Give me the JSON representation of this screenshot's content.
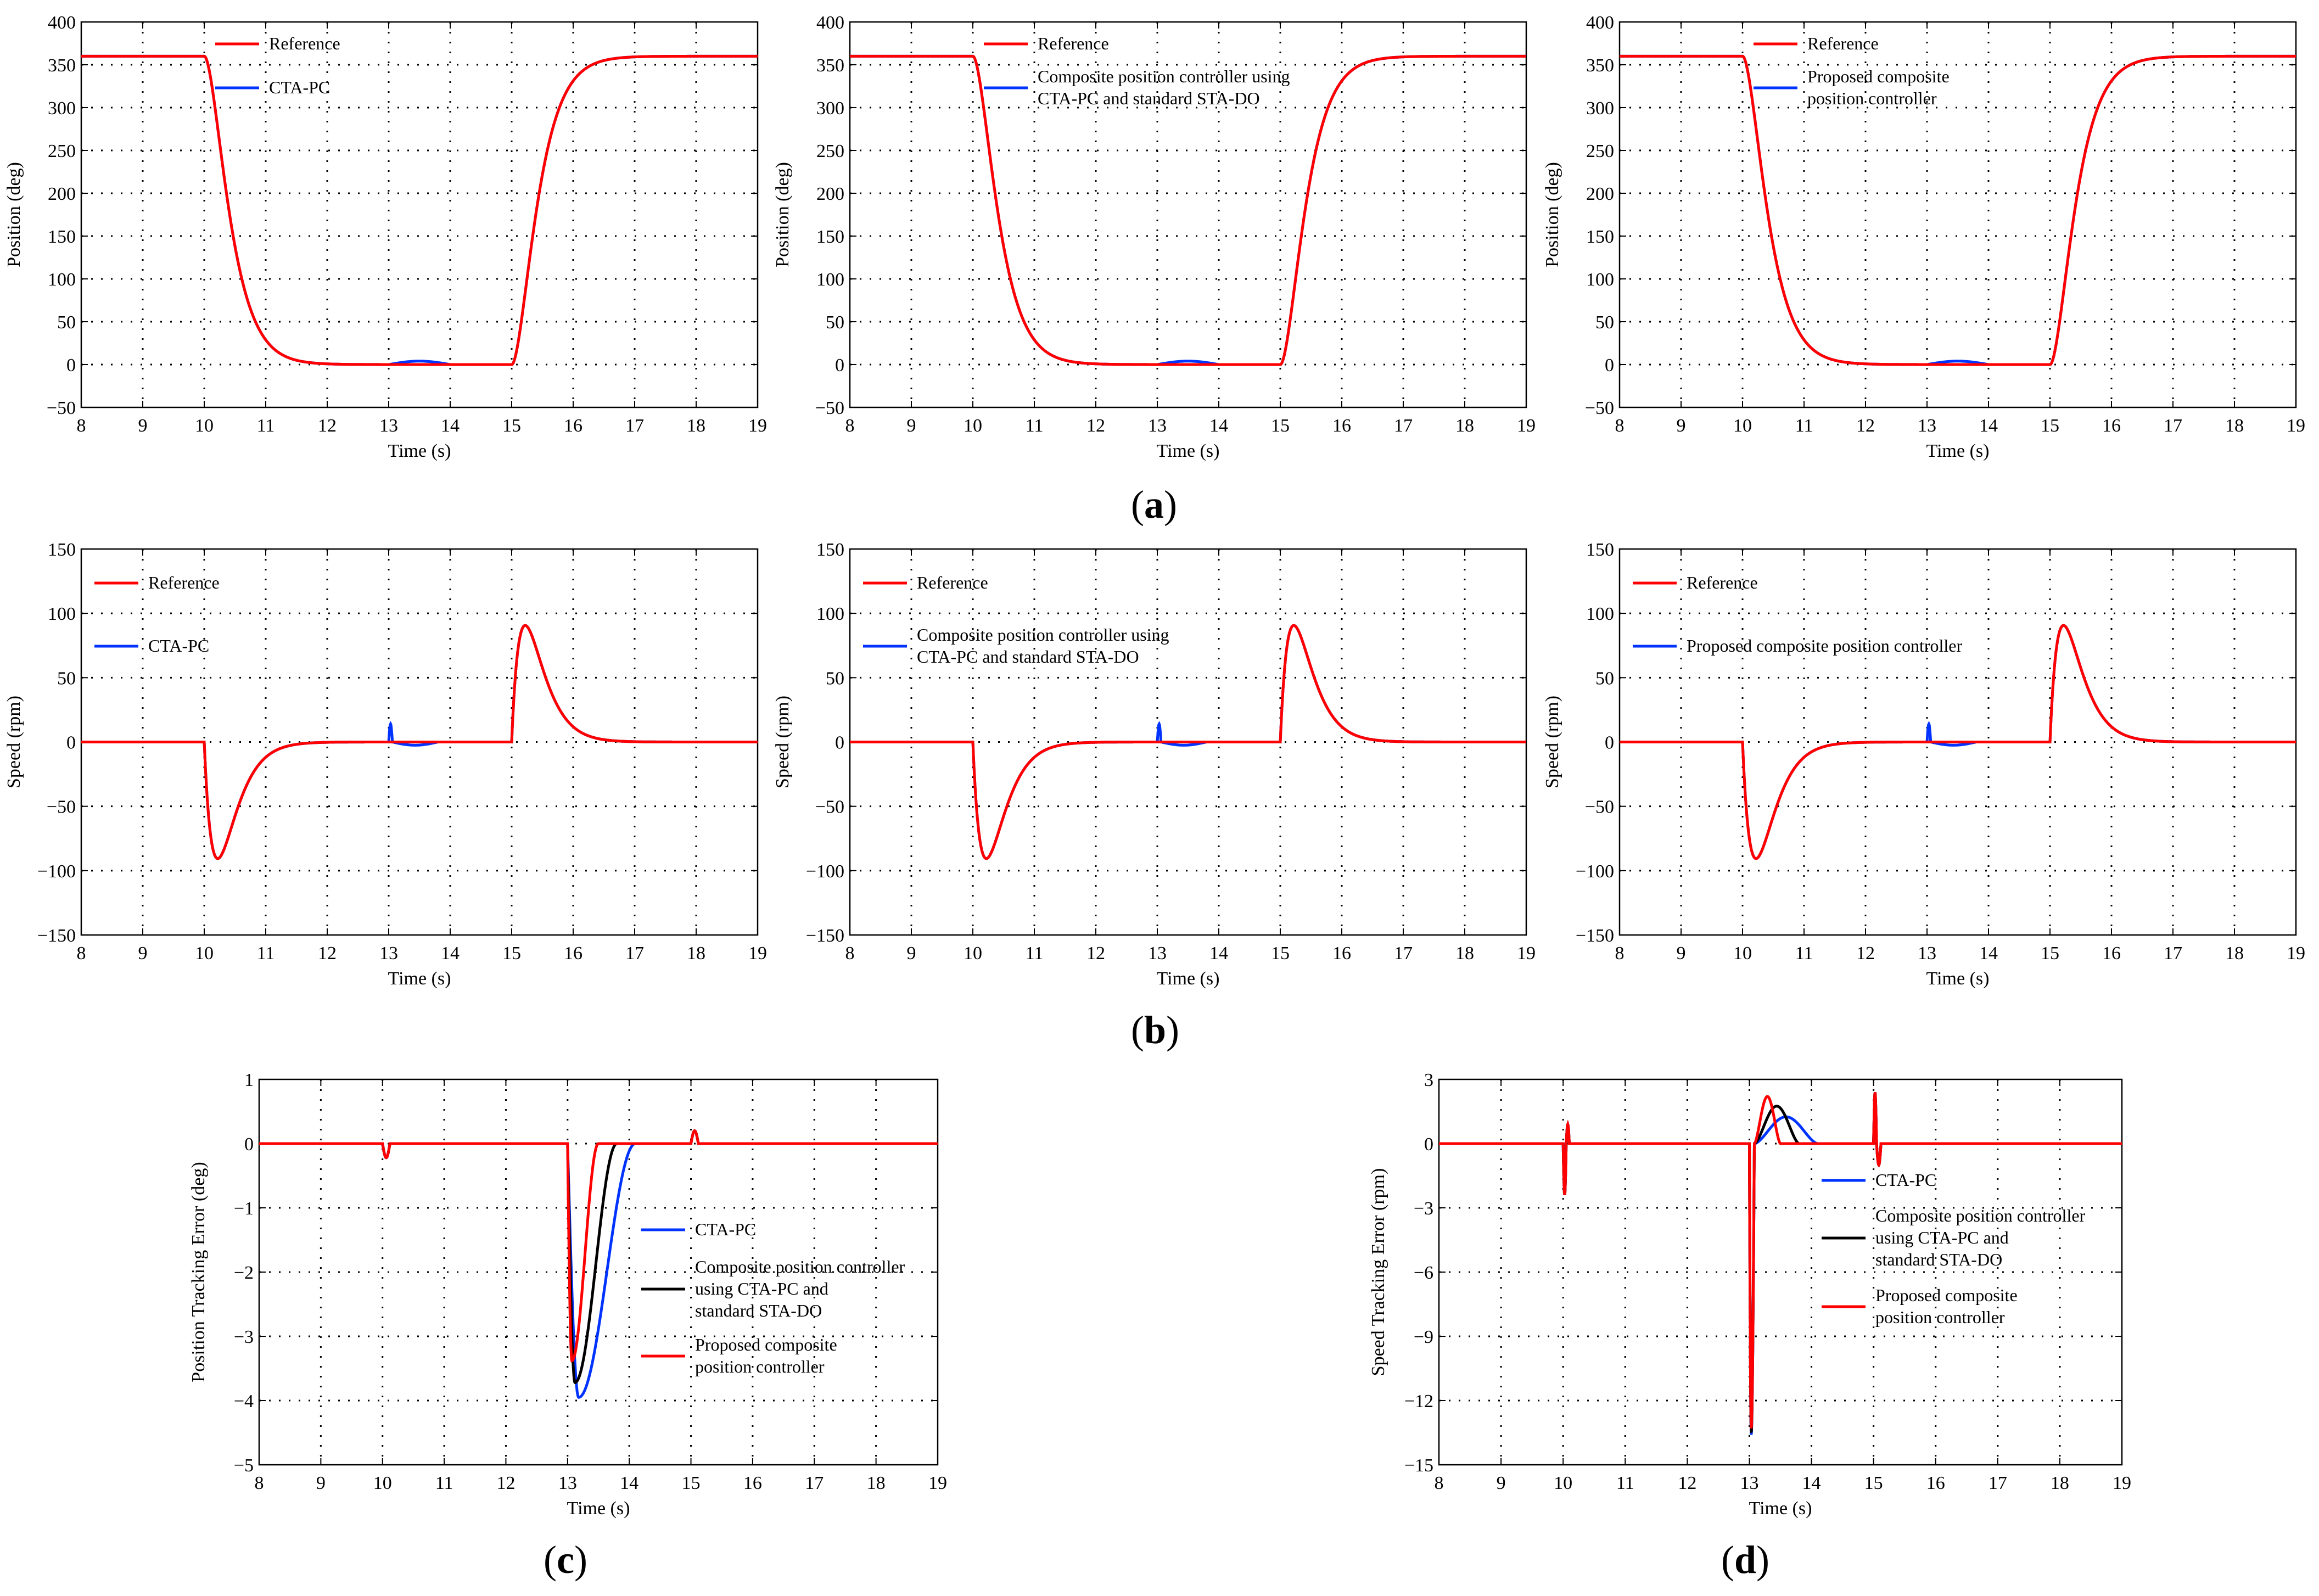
{
  "colors": {
    "reference": "#ff0000",
    "cta_pc": "#0033ff",
    "std_sta_do": "#000000",
    "proposed": "#ff0000",
    "axis": "#000000",
    "grid": "#000000"
  },
  "labels": {
    "a": "a",
    "b": "b",
    "c": "c",
    "d": "d"
  },
  "chart_data": [
    {
      "id": "a1",
      "type": "line",
      "xlabel": "Time (s)",
      "ylabel": "Position (deg)",
      "xlim": [
        8,
        19
      ],
      "ylim": [
        -50,
        400
      ],
      "xticks": [
        8,
        9,
        10,
        11,
        12,
        13,
        14,
        15,
        16,
        17,
        18,
        19
      ],
      "yticks": [
        -50,
        0,
        50,
        100,
        150,
        200,
        250,
        300,
        350,
        400
      ],
      "grid": true,
      "legend_position": "top-left",
      "series": [
        {
          "name": "Reference",
          "legend": [
            "Reference"
          ],
          "color": "#ff0000",
          "curve": "pos_ref"
        },
        {
          "name": "CTA-PC",
          "legend": [
            "CTA-PC"
          ],
          "color": "#0033ff",
          "curve": "pos_ref_dist"
        }
      ]
    },
    {
      "id": "a2",
      "type": "line",
      "xlabel": "Time (s)",
      "ylabel": "Position (deg)",
      "xlim": [
        8,
        19
      ],
      "ylim": [
        -50,
        400
      ],
      "xticks": [
        8,
        9,
        10,
        11,
        12,
        13,
        14,
        15,
        16,
        17,
        18,
        19
      ],
      "yticks": [
        -50,
        0,
        50,
        100,
        150,
        200,
        250,
        300,
        350,
        400
      ],
      "grid": true,
      "legend_position": "top-left",
      "series": [
        {
          "name": "Reference",
          "legend": [
            "Reference"
          ],
          "color": "#ff0000",
          "curve": "pos_ref"
        },
        {
          "name": "Composite position controller using CTA-PC and standard STA-DO",
          "legend": [
            "Composite position controller using",
            "CTA-PC and standard STA-DO"
          ],
          "color": "#0033ff",
          "curve": "pos_ref_dist"
        }
      ]
    },
    {
      "id": "a3",
      "type": "line",
      "xlabel": "Time (s)",
      "ylabel": "Position (deg)",
      "xlim": [
        8,
        19
      ],
      "ylim": [
        -50,
        400
      ],
      "xticks": [
        8,
        9,
        10,
        11,
        12,
        13,
        14,
        15,
        16,
        17,
        18,
        19
      ],
      "yticks": [
        -50,
        0,
        50,
        100,
        150,
        200,
        250,
        300,
        350,
        400
      ],
      "grid": true,
      "legend_position": "top-left",
      "series": [
        {
          "name": "Reference",
          "legend": [
            "Reference"
          ],
          "color": "#ff0000",
          "curve": "pos_ref"
        },
        {
          "name": "Proposed composite position controller",
          "legend": [
            "Proposed composite",
            "position controller"
          ],
          "color": "#0033ff",
          "curve": "pos_ref_dist"
        }
      ]
    },
    {
      "id": "b1",
      "type": "line",
      "xlabel": "Time (s)",
      "ylabel": "Speed (rpm)",
      "xlim": [
        8,
        19
      ],
      "ylim": [
        -150,
        150
      ],
      "xticks": [
        8,
        9,
        10,
        11,
        12,
        13,
        14,
        15,
        16,
        17,
        18,
        19
      ],
      "yticks": [
        -150,
        -100,
        -50,
        0,
        50,
        100,
        150
      ],
      "grid": true,
      "legend_position": "top-left",
      "series": [
        {
          "name": "Reference",
          "legend": [
            "Reference"
          ],
          "color": "#ff0000",
          "curve": "speed_ref"
        },
        {
          "name": "CTA-PC",
          "legend": [
            "CTA-PC"
          ],
          "color": "#0033ff",
          "curve": "speed_spike"
        }
      ]
    },
    {
      "id": "b2",
      "type": "line",
      "xlabel": "Time (s)",
      "ylabel": "Speed (rpm)",
      "xlim": [
        8,
        19
      ],
      "ylim": [
        -150,
        150
      ],
      "xticks": [
        8,
        9,
        10,
        11,
        12,
        13,
        14,
        15,
        16,
        17,
        18,
        19
      ],
      "yticks": [
        -150,
        -100,
        -50,
        0,
        50,
        100,
        150
      ],
      "grid": true,
      "legend_position": "top-left",
      "series": [
        {
          "name": "Reference",
          "legend": [
            "Reference"
          ],
          "color": "#ff0000",
          "curve": "speed_ref"
        },
        {
          "name": "Composite position controller using CTA-PC and standard STA-DO",
          "legend": [
            "Composite position controller using",
            "CTA-PC and standard STA-DO"
          ],
          "color": "#0033ff",
          "curve": "speed_spike"
        }
      ]
    },
    {
      "id": "b3",
      "type": "line",
      "xlabel": "Time (s)",
      "ylabel": "Speed (rpm)",
      "xlim": [
        8,
        19
      ],
      "ylim": [
        -150,
        150
      ],
      "xticks": [
        8,
        9,
        10,
        11,
        12,
        13,
        14,
        15,
        16,
        17,
        18,
        19
      ],
      "yticks": [
        -150,
        -100,
        -50,
        0,
        50,
        100,
        150
      ],
      "grid": true,
      "legend_position": "top-left",
      "series": [
        {
          "name": "Reference",
          "legend": [
            "Reference"
          ],
          "color": "#ff0000",
          "curve": "speed_ref"
        },
        {
          "name": "Proposed composite position controller",
          "legend": [
            "Proposed composite position controller"
          ],
          "color": "#0033ff",
          "curve": "speed_spike"
        }
      ]
    },
    {
      "id": "c",
      "type": "line",
      "xlabel": "Time (s)",
      "ylabel": "Position Tracking Error (deg)",
      "xlim": [
        8,
        19
      ],
      "ylim": [
        -5,
        1
      ],
      "xticks": [
        8,
        9,
        10,
        11,
        12,
        13,
        14,
        15,
        16,
        17,
        18,
        19
      ],
      "yticks": [
        -5,
        -4,
        -3,
        -2,
        -1,
        0,
        1
      ],
      "grid": true,
      "legend_position": "center-right",
      "series": [
        {
          "name": "CTA-PC",
          "legend": [
            "CTA-PC"
          ],
          "color": "#0033ff",
          "curve": "pos_err",
          "peak": -3.95,
          "t_peak": 13.18,
          "t_end": 14.1
        },
        {
          "name": "Composite position controller using CTA-PC and standard STA-DO",
          "legend": [
            "Composite position controller",
            "using CTA-PC and",
            "standard STA-DO"
          ],
          "color": "#000000",
          "curve": "pos_err",
          "peak": -3.72,
          "t_peak": 13.12,
          "t_end": 13.8
        },
        {
          "name": "Proposed composite position controller",
          "legend": [
            "Proposed  composite",
            "position controller"
          ],
          "color": "#ff0000",
          "curve": "pos_err",
          "peak": -3.38,
          "t_peak": 13.07,
          "t_end": 13.5
        }
      ]
    },
    {
      "id": "d",
      "type": "line",
      "xlabel": "Time (s)",
      "ylabel": "Speed Tracking Error (rpm)",
      "xlim": [
        8,
        19
      ],
      "ylim": [
        -15,
        3
      ],
      "xticks": [
        8,
        9,
        10,
        11,
        12,
        13,
        14,
        15,
        16,
        17,
        18,
        19
      ],
      "yticks": [
        -15,
        -12,
        -9,
        -6,
        -3,
        0,
        3
      ],
      "grid": true,
      "legend_position": "center-right",
      "series": [
        {
          "name": "CTA-PC",
          "legend": [
            "CTA-PC"
          ],
          "color": "#0033ff",
          "curve": "spd_err",
          "min": -13.6,
          "bump": 1.25,
          "t_bump": 13.5,
          "t_end": 14.1
        },
        {
          "name": "Composite position controller using CTA-PC and standard STA-DO",
          "legend": [
            "Composite position controller",
            "using CTA-PC and",
            "standard STA-DO"
          ],
          "color": "#000000",
          "curve": "spd_err",
          "min": -13.5,
          "bump": 1.75,
          "t_bump": 13.35,
          "t_end": 13.8
        },
        {
          "name": "Proposed composite position controller",
          "legend": [
            "Proposed  composite",
            "position controller"
          ],
          "color": "#ff0000",
          "curve": "spd_err",
          "min": -13.3,
          "bump": 2.2,
          "t_bump": 13.2,
          "t_end": 13.5
        }
      ]
    }
  ]
}
